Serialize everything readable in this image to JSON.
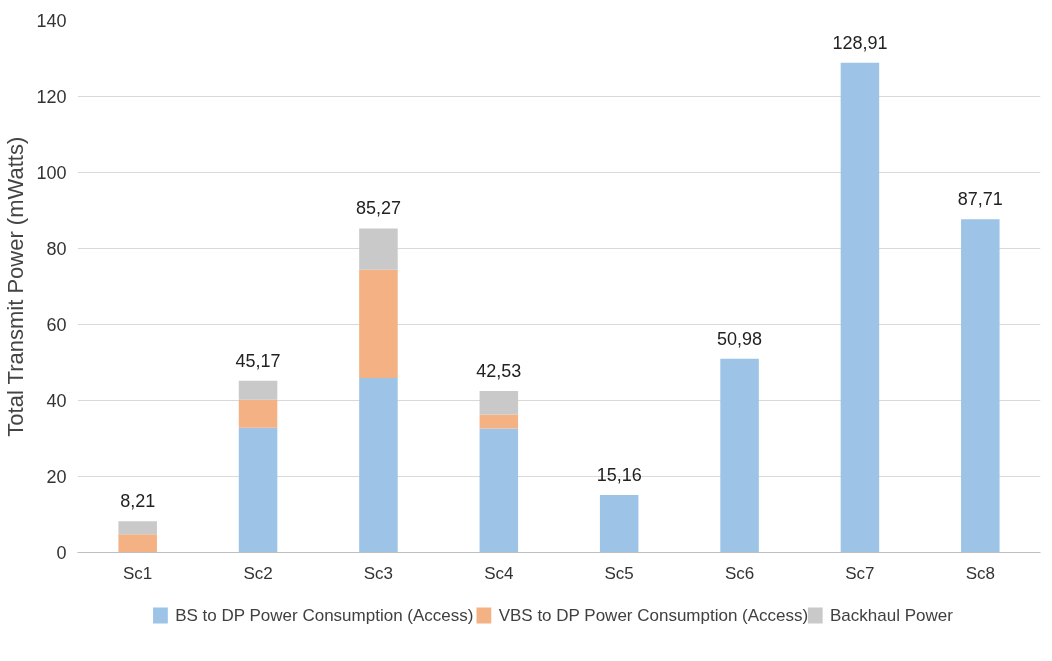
{
  "chart_data": {
    "type": "bar",
    "stacked": true,
    "ylabel": "Total Transmit Power (mWatts)",
    "categories": [
      "Sc1",
      "Sc2",
      "Sc3",
      "Sc4",
      "Sc5",
      "Sc6",
      "Sc7",
      "Sc8"
    ],
    "series": [
      {
        "name": "BS to DP Power Consumption (Access)",
        "color": "#9dc3e6",
        "values": [
          0,
          32.8,
          45.9,
          32.6,
          15.16,
          50.98,
          128.91,
          87.71
        ]
      },
      {
        "name": "VBS to DP Power Consumption (Access)",
        "color": "#f4b183",
        "values": [
          4.8,
          7.4,
          28.5,
          3.7,
          0,
          0,
          0,
          0
        ]
      },
      {
        "name": "Backhaul Power",
        "color": "#c9c9c9",
        "values": [
          3.41,
          4.97,
          10.87,
          6.23,
          0,
          0,
          0,
          0
        ]
      }
    ],
    "totals": [
      "8,21",
      "45,17",
      "85,27",
      "42,53",
      "15,16",
      "50,98",
      "128,91",
      "87,71"
    ],
    "ylim": [
      0,
      140
    ],
    "yticks": [
      0,
      20,
      40,
      60,
      80,
      100,
      120,
      140
    ],
    "grid": "y",
    "legend": "bottom"
  }
}
